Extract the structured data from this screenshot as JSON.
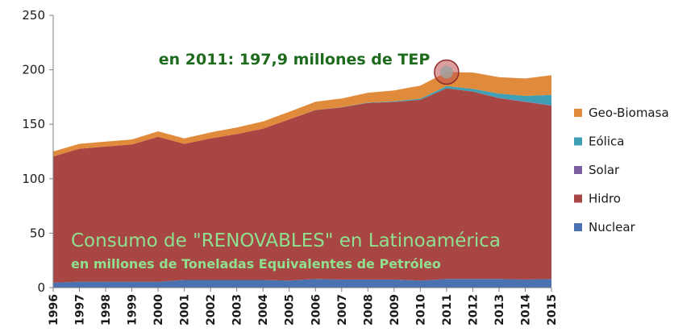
{
  "chart_data": {
    "type": "area",
    "stacked": true,
    "title": "Consumo de \"RENOVABLES\" en Latinoamérica",
    "subtitle": "en millones de Toneladas Equivalentes de Petróleo",
    "annotation": "en 2011: 197,9 millones de TEP",
    "highlight_year": "2011",
    "x": [
      "1996",
      "1997",
      "1998",
      "1999",
      "2000",
      "2001",
      "2002",
      "2003",
      "2004",
      "2005",
      "2006",
      "2007",
      "2008",
      "2009",
      "2010",
      "2011",
      "2012",
      "2013",
      "2014",
      "2015"
    ],
    "ylim": [
      0,
      250
    ],
    "yticks": [
      0,
      50,
      100,
      150,
      200,
      250
    ],
    "grid": false,
    "legend_position": "right",
    "series": [
      {
        "name": "Nuclear",
        "color": "#4a72b0",
        "values": [
          4.5,
          5.5,
          5.5,
          5.5,
          5.5,
          7,
          7,
          7,
          7,
          6.5,
          8,
          7.5,
          7.5,
          7.5,
          6.5,
          8,
          8,
          8,
          7.5,
          8
        ]
      },
      {
        "name": "Hidro",
        "color": "#a84644",
        "values": [
          116,
          122,
          124,
          126,
          133,
          125,
          130,
          134,
          139,
          148,
          155,
          158,
          162,
          163,
          166,
          175,
          172,
          166,
          163,
          159
        ]
      },
      {
        "name": "Solar",
        "color": "#7b5da0",
        "values": [
          0,
          0,
          0,
          0,
          0,
          0,
          0,
          0,
          0,
          0,
          0,
          0,
          0,
          0,
          0,
          0,
          0,
          0.2,
          0.3,
          0.5
        ]
      },
      {
        "name": "Eólica",
        "color": "#3fa0b5",
        "values": [
          0,
          0,
          0,
          0,
          0,
          0,
          0,
          0,
          0,
          0,
          0.1,
          0.2,
          0.4,
          0.6,
          1,
          2,
          2.5,
          4,
          5.2,
          9.5
        ]
      },
      {
        "name": "Geo-Biomasa",
        "color": "#e08a3c",
        "values": [
          4.5,
          4.5,
          4.5,
          4.5,
          5,
          5,
          5.5,
          6,
          6.5,
          7,
          7.5,
          8,
          9,
          10,
          12,
          12.9,
          15,
          15,
          16,
          18
        ]
      }
    ]
  }
}
